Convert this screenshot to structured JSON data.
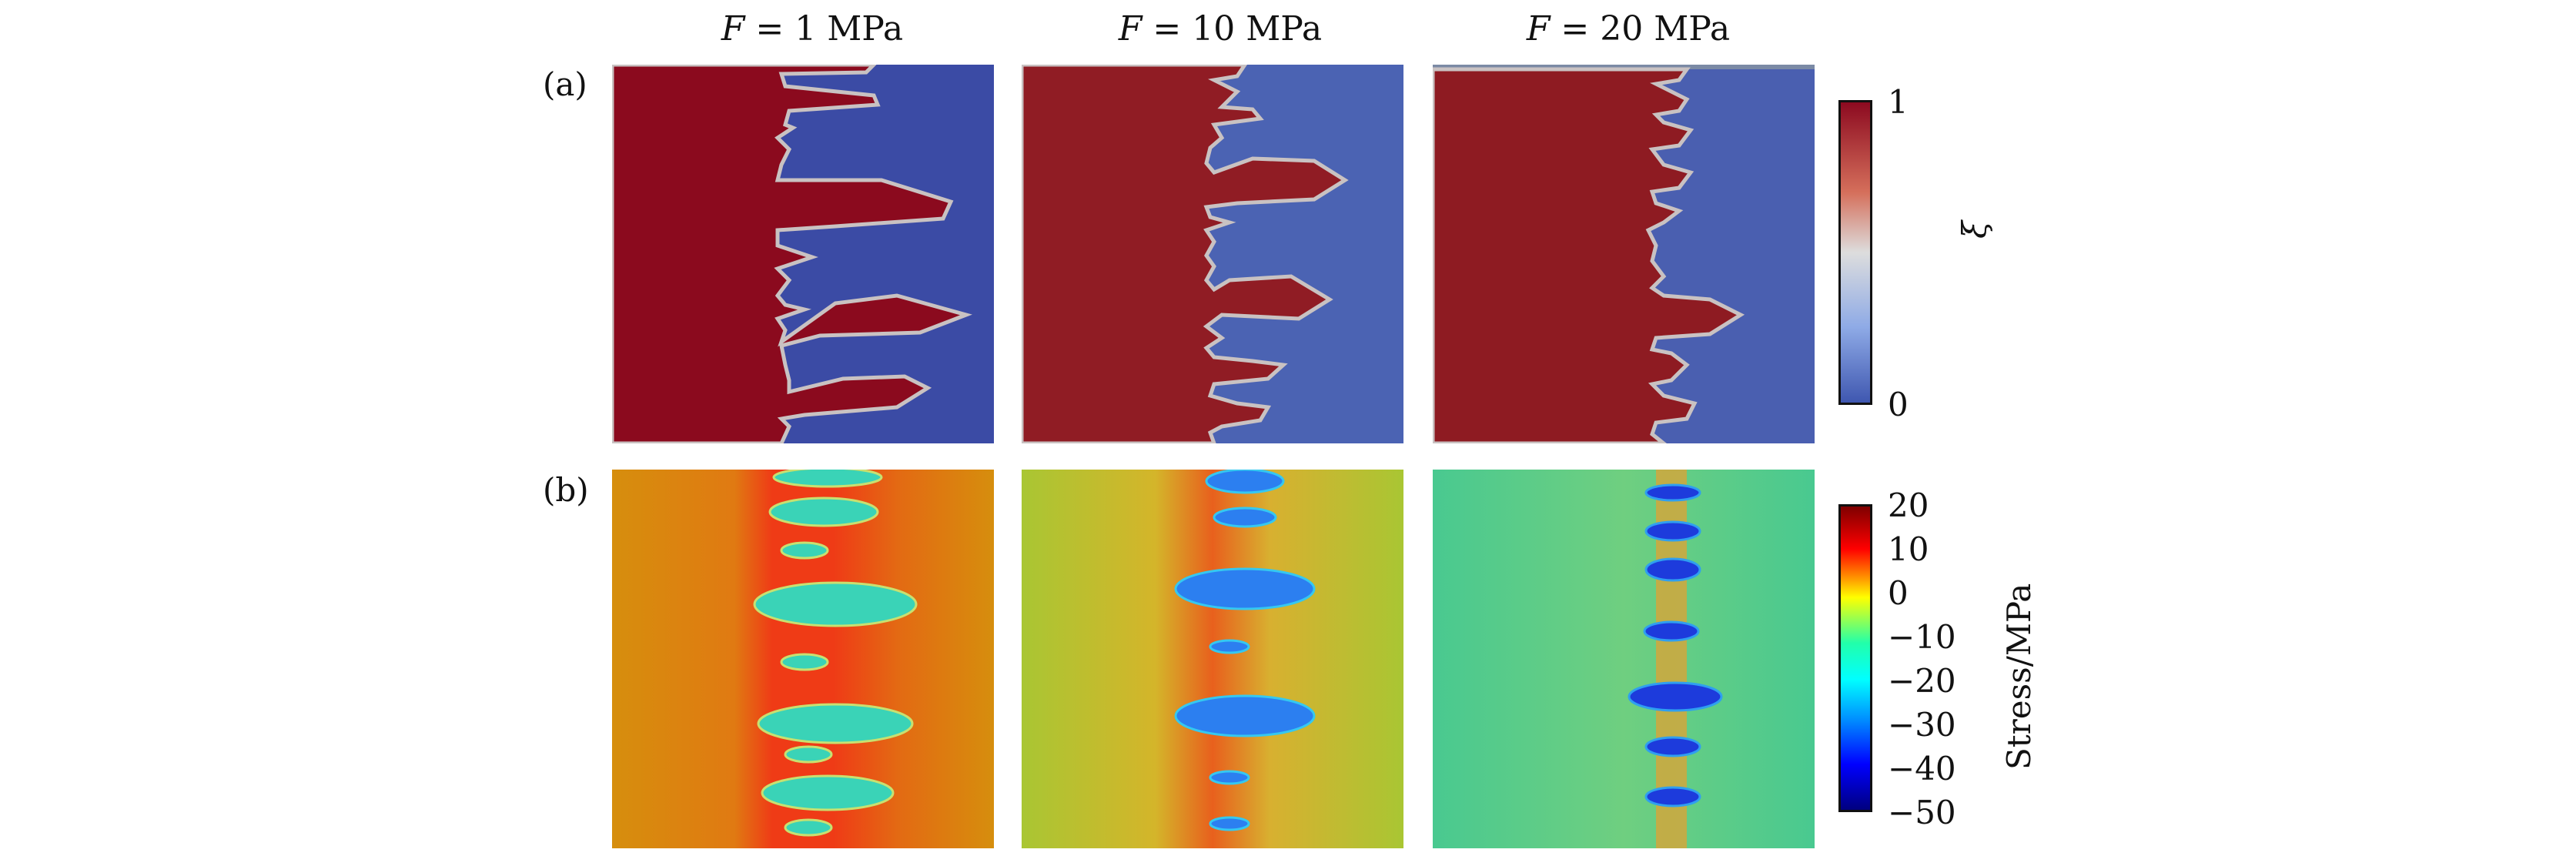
{
  "columns": [
    {
      "prefix": "F",
      "eq": " = ",
      "value": "1 MPa"
    },
    {
      "prefix": "F",
      "eq": " = ",
      "value": "10 MPa"
    },
    {
      "prefix": "F",
      "eq": " = ",
      "value": "20 MPa"
    }
  ],
  "rows": [
    {
      "label": "(a)"
    },
    {
      "label": "(b)"
    }
  ],
  "colorbar_a": {
    "title": "ξ",
    "ticks": [
      "1",
      "0"
    ],
    "colors": {
      "high": "#8c0a20",
      "mid": "#dddddd",
      "low": "#3f57b0"
    }
  },
  "colorbar_b": {
    "title": "Stress/MPa",
    "ticks": [
      "20",
      "10",
      "0",
      "−10",
      "−20",
      "−30",
      "−40",
      "−50"
    ],
    "colors": [
      "#7f0000",
      "#ff0000",
      "#ffff00",
      "#22ffaa",
      "#00ffff",
      "#0090ff",
      "#0000ff",
      "#00007f"
    ]
  },
  "panel_colors": {
    "a_bg_left": [
      "#8b0a1e",
      "#901c24",
      "#8e1b22"
    ],
    "a_bg_right": [
      "#3b4ba5",
      "#4b63b3",
      "#4a5fb0"
    ],
    "b_bg": [
      "#d68e0d",
      "#a9c633",
      "#49c990"
    ],
    "b_band": [
      "#ef3b16",
      "#e8601d",
      "#d8a538"
    ],
    "b_inclusion": [
      "#3ad3b7",
      "#2c7ff0",
      "#1d3bdc"
    ]
  }
}
